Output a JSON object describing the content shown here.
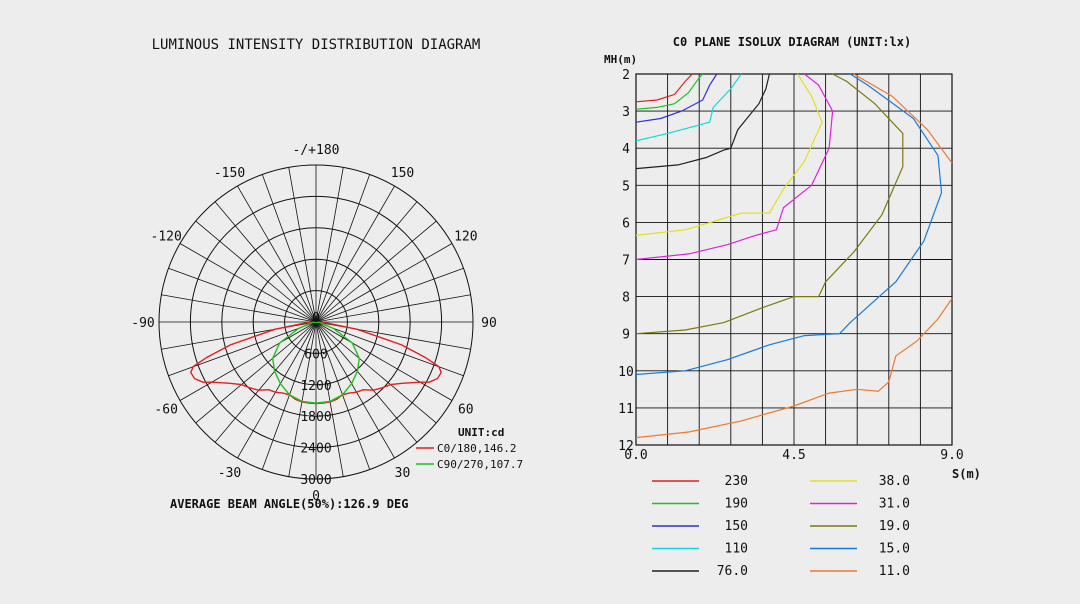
{
  "chart_data": [
    {
      "type": "polar",
      "title": "LUMINOUS INTENSITY DISTRIBUTION DIAGRAM",
      "angle_labels": [
        {
          "deg": 180,
          "text": "-/+180"
        },
        {
          "deg": 150,
          "text": "150"
        },
        {
          "deg": -150,
          "text": "-150"
        },
        {
          "deg": 120,
          "text": "120"
        },
        {
          "deg": -120,
          "text": "-120"
        },
        {
          "deg": 90,
          "text": "90"
        },
        {
          "deg": -90,
          "text": "-90"
        },
        {
          "deg": 60,
          "text": "60"
        },
        {
          "deg": -60,
          "text": "-60"
        },
        {
          "deg": 30,
          "text": "30"
        },
        {
          "deg": -30,
          "text": "-30"
        },
        {
          "deg": 0,
          "text": "0"
        }
      ],
      "radial_ticks": [
        "0",
        "600",
        "1200",
        "1800",
        "2400",
        "3000"
      ],
      "r_max": 3000,
      "unit_label": "UNIT:cd",
      "series": [
        {
          "name": "C0/180,146.2",
          "color": "#e02020",
          "angles": [
            0,
            5,
            10,
            15,
            20,
            25,
            30,
            35,
            40,
            45,
            50,
            55,
            60,
            62,
            65,
            68,
            70,
            72,
            75,
            80,
            85,
            90
          ],
          "values": [
            1560,
            1555,
            1550,
            1530,
            1480,
            1500,
            1550,
            1580,
            1700,
            1780,
            1860,
            2040,
            2300,
            2450,
            2560,
            2580,
            2500,
            2200,
            1700,
            800,
            200,
            0
          ]
        },
        {
          "name": "C90/270,107.7",
          "color": "#20c020",
          "angles": [
            0,
            10,
            20,
            30,
            40,
            50,
            60,
            70,
            80,
            90
          ],
          "values": [
            1550,
            1540,
            1480,
            1360,
            1230,
            1080,
            800,
            350,
            80,
            0
          ]
        }
      ],
      "footer": "AVERAGE BEAM ANGLE(50%):126.9 DEG"
    },
    {
      "type": "line",
      "title": "C0 PLANE ISOLUX DIAGRAM (UNIT:lx)",
      "ylabel": "MH(m)",
      "xlabel": "S(m)",
      "xlim": [
        0,
        9
      ],
      "ylim": [
        2,
        12
      ],
      "x_ticks": [
        "0.0",
        "4.5",
        "9.0"
      ],
      "y_ticks": [
        "2",
        "3",
        "4",
        "5",
        "6",
        "7",
        "8",
        "9",
        "10",
        "11",
        "12"
      ],
      "series": [
        {
          "name": "230",
          "color": "#e02020",
          "points": [
            [
              0,
              2.75
            ],
            [
              0.6,
              2.7
            ],
            [
              1.1,
              2.55
            ],
            [
              1.4,
              2.2
            ],
            [
              1.6,
              2
            ]
          ]
        },
        {
          "name": "190",
          "color": "#20c020",
          "points": [
            [
              0,
              2.95
            ],
            [
              0.6,
              2.9
            ],
            [
              1.1,
              2.8
            ],
            [
              1.5,
              2.5
            ],
            [
              1.8,
              2.1
            ],
            [
              1.9,
              2
            ]
          ]
        },
        {
          "name": "150",
          "color": "#3030d0",
          "points": [
            [
              0,
              3.3
            ],
            [
              0.7,
              3.2
            ],
            [
              1.3,
              3.0
            ],
            [
              1.9,
              2.7
            ],
            [
              2.1,
              2.3
            ],
            [
              2.3,
              2
            ]
          ]
        },
        {
          "name": "110",
          "color": "#10dada",
          "points": [
            [
              0,
              3.8
            ],
            [
              0.9,
              3.6
            ],
            [
              1.5,
              3.45
            ],
            [
              2.1,
              3.3
            ],
            [
              2.2,
              2.9
            ],
            [
              2.7,
              2.4
            ],
            [
              3.0,
              2
            ]
          ]
        },
        {
          "name": "76.0",
          "color": "#202020",
          "points": [
            [
              0,
              4.55
            ],
            [
              1.2,
              4.45
            ],
            [
              2.0,
              4.25
            ],
            [
              2.5,
              4.05
            ],
            [
              2.7,
              4.0
            ],
            [
              2.9,
              3.5
            ],
            [
              3.5,
              2.8
            ],
            [
              3.7,
              2.4
            ],
            [
              3.8,
              2
            ]
          ]
        },
        {
          "name": "38.0",
          "color": "#e0e020",
          "points": [
            [
              0,
              6.35
            ],
            [
              1.4,
              6.2
            ],
            [
              2.3,
              5.95
            ],
            [
              3.0,
              5.75
            ],
            [
              3.8,
              5.75
            ],
            [
              4.2,
              5.1
            ],
            [
              4.8,
              4.35
            ],
            [
              5.3,
              3.3
            ],
            [
              5.0,
              2.6
            ],
            [
              4.6,
              2
            ]
          ]
        },
        {
          "name": "31.0",
          "color": "#e020e0",
          "points": [
            [
              0,
              7.0
            ],
            [
              1.5,
              6.85
            ],
            [
              2.6,
              6.6
            ],
            [
              3.4,
              6.35
            ],
            [
              4.0,
              6.2
            ],
            [
              4.2,
              5.6
            ],
            [
              5.0,
              5.0
            ],
            [
              5.5,
              4.0
            ],
            [
              5.6,
              3.0
            ],
            [
              5.2,
              2.3
            ],
            [
              4.8,
              2
            ]
          ]
        },
        {
          "name": "19.0",
          "color": "#7a7a10",
          "points": [
            [
              0,
              9.0
            ],
            [
              1.4,
              8.9
            ],
            [
              2.5,
              8.7
            ],
            [
              3.6,
              8.3
            ],
            [
              4.5,
              8.0
            ],
            [
              5.2,
              8.0
            ],
            [
              5.4,
              7.6
            ],
            [
              6.2,
              6.8
            ],
            [
              7.0,
              5.8
            ],
            [
              7.6,
              4.5
            ],
            [
              7.6,
              3.6
            ],
            [
              6.8,
              2.8
            ],
            [
              6.0,
              2.2
            ],
            [
              5.6,
              2
            ]
          ]
        },
        {
          "name": "15.0",
          "color": "#1a7ad8",
          "points": [
            [
              0,
              10.1
            ],
            [
              1.4,
              10.0
            ],
            [
              2.6,
              9.7
            ],
            [
              3.8,
              9.3
            ],
            [
              4.8,
              9.05
            ],
            [
              5.8,
              9.0
            ],
            [
              6.1,
              8.7
            ],
            [
              7.4,
              7.6
            ],
            [
              8.2,
              6.5
            ],
            [
              8.7,
              5.2
            ],
            [
              8.6,
              4.2
            ],
            [
              7.9,
              3.2
            ],
            [
              6.6,
              2.3
            ],
            [
              6.1,
              2
            ]
          ]
        },
        {
          "name": "11.0",
          "color": "#ef7a30",
          "points": [
            [
              0,
              11.8
            ],
            [
              1.5,
              11.65
            ],
            [
              3.0,
              11.35
            ],
            [
              4.5,
              10.95
            ],
            [
              5.5,
              10.6
            ],
            [
              6.3,
              10.5
            ],
            [
              6.9,
              10.55
            ],
            [
              7.2,
              10.3
            ],
            [
              7.4,
              9.6
            ],
            [
              8.0,
              9.2
            ],
            [
              8.6,
              8.6
            ],
            [
              9.0,
              8.05
            ]
          ]
        },
        {
          "name": "11.0 (upper)",
          "color": "#ef7a30",
          "points": [
            [
              6.2,
              2
            ],
            [
              7.3,
              2.6
            ],
            [
              8.3,
              3.5
            ],
            [
              9.0,
              4.4
            ]
          ]
        }
      ],
      "legend": {
        "left": [
          {
            "label": "230",
            "color": "#e02020"
          },
          {
            "label": "190",
            "color": "#20c020"
          },
          {
            "label": "150",
            "color": "#3030d0"
          },
          {
            "label": "110",
            "color": "#10dada"
          },
          {
            "label": "76.0",
            "color": "#202020"
          }
        ],
        "right": [
          {
            "label": "38.0",
            "color": "#e0e020"
          },
          {
            "label": "31.0",
            "color": "#e020e0"
          },
          {
            "label": "19.0",
            "color": "#7a7a10"
          },
          {
            "label": "15.0",
            "color": "#1a7ad8"
          },
          {
            "label": "11.0",
            "color": "#ef7a30"
          }
        ]
      }
    }
  ]
}
